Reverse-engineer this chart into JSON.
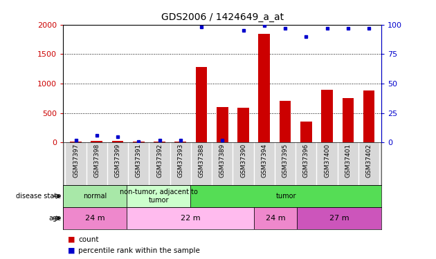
{
  "title": "GDS2006 / 1424649_a_at",
  "samples": [
    "GSM37397",
    "GSM37398",
    "GSM37399",
    "GSM37391",
    "GSM37392",
    "GSM37393",
    "GSM37388",
    "GSM37389",
    "GSM37390",
    "GSM37394",
    "GSM37395",
    "GSM37396",
    "GSM37400",
    "GSM37401",
    "GSM37402"
  ],
  "counts": [
    20,
    30,
    25,
    10,
    12,
    15,
    1280,
    600,
    590,
    1840,
    710,
    350,
    890,
    755,
    880
  ],
  "percentile": [
    2,
    6,
    5,
    1,
    2,
    2,
    98,
    2,
    95,
    99,
    97,
    90,
    97,
    97,
    97
  ],
  "bar_color": "#cc0000",
  "dot_color": "#0000cc",
  "ylim_left": [
    0,
    2000
  ],
  "ylim_right": [
    0,
    100
  ],
  "yticks_left": [
    0,
    500,
    1000,
    1500,
    2000
  ],
  "yticks_right": [
    0,
    25,
    50,
    75,
    100
  ],
  "disease_state": [
    {
      "label": "normal",
      "start": 0,
      "end": 3,
      "color": "#a8e8a8"
    },
    {
      "label": "non-tumor, adjacent to\ntumor",
      "start": 3,
      "end": 6,
      "color": "#ccffcc"
    },
    {
      "label": "tumor",
      "start": 6,
      "end": 15,
      "color": "#55dd55"
    }
  ],
  "age": [
    {
      "label": "24 m",
      "start": 0,
      "end": 3,
      "color": "#ee88cc"
    },
    {
      "label": "22 m",
      "start": 3,
      "end": 9,
      "color": "#ffbbee"
    },
    {
      "label": "24 m",
      "start": 9,
      "end": 11,
      "color": "#ee88cc"
    },
    {
      "label": "27 m",
      "start": 11,
      "end": 15,
      "color": "#cc55bb"
    }
  ],
  "legend_count_color": "#cc0000",
  "legend_pct_color": "#0000cc",
  "tick_color_left": "#cc0000",
  "tick_color_right": "#0000cc",
  "xlabels_bg": "#d8d8d8",
  "spine_color": "#000000"
}
